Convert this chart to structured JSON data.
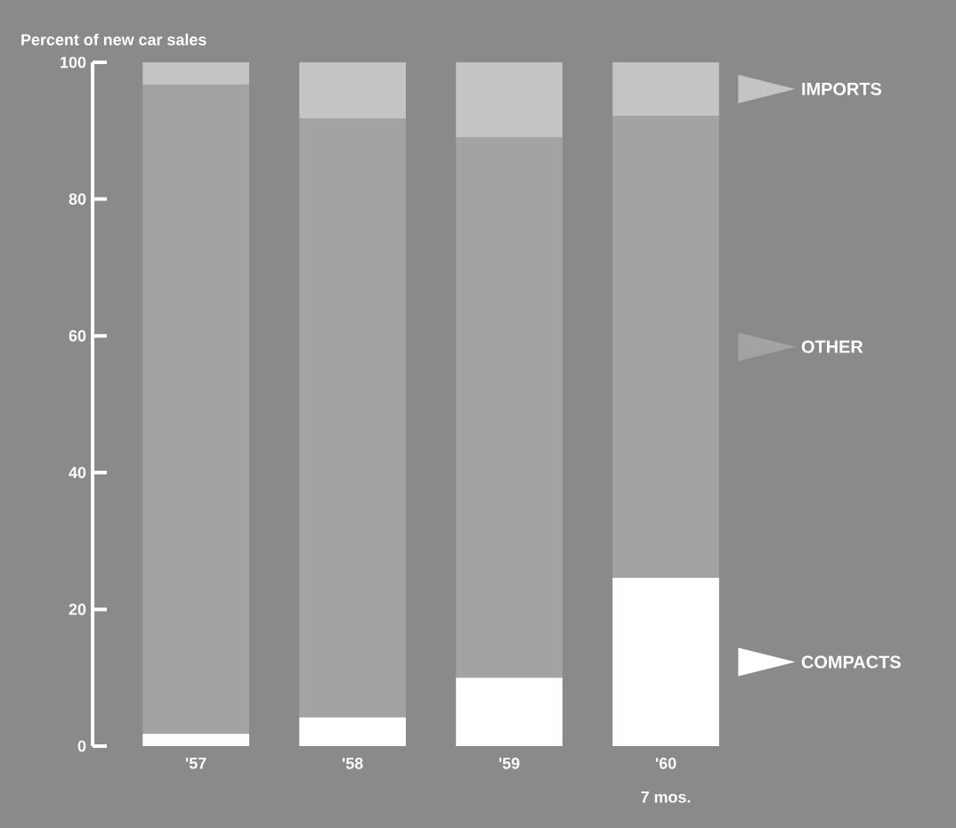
{
  "chart_data": {
    "type": "bar",
    "stacked": true,
    "ylabel": "Percent of new car sales",
    "categories": [
      "'57",
      "'58",
      "'59",
      "'60"
    ],
    "series": [
      {
        "name": "COMPACTS",
        "color": "#ffffff",
        "values": [
          1.8,
          4.2,
          10,
          24.6
        ]
      },
      {
        "name": "OTHER",
        "color": "#a3a3a3",
        "values": [
          94.9,
          87.6,
          79,
          67.6
        ]
      },
      {
        "name": "IMPORTS",
        "color": "#c4c4c4",
        "values": [
          3.3,
          8.2,
          11,
          7.8
        ]
      }
    ],
    "legend": "right",
    "ylim": [
      0,
      100
    ],
    "yticks": [
      0,
      20,
      40,
      60,
      80,
      100
    ],
    "annotations": [
      "7 mos."
    ]
  }
}
